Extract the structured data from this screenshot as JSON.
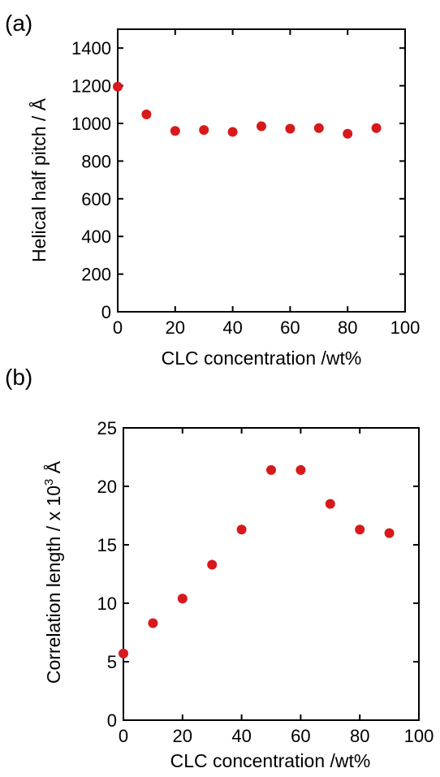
{
  "chart_data": [
    {
      "panel_label": "(a)",
      "type": "scatter",
      "xlabel": "CLC concentration /wt%",
      "ylabel": "Helical half pitch / Å",
      "xlim": [
        0,
        100
      ],
      "ylim": [
        0,
        1500
      ],
      "x_ticks": [
        0,
        20,
        40,
        60,
        80,
        100
      ],
      "y_ticks": [
        0,
        200,
        400,
        600,
        800,
        1000,
        1200,
        1400
      ],
      "marker_color": "#d7191c",
      "series": [
        {
          "x": [
            0,
            10,
            20,
            30,
            40,
            50,
            60,
            70,
            80,
            90
          ],
          "y": [
            1195,
            1048,
            960,
            965,
            955,
            985,
            972,
            975,
            945,
            975
          ]
        }
      ]
    },
    {
      "panel_label": "(b)",
      "type": "scatter",
      "xlabel": "CLC concentration /wt%",
      "ylabel": "Correlation length / x 10",
      "ylabel_sup": "3",
      "ylabel_unit": "Å",
      "xlim": [
        0,
        100
      ],
      "ylim": [
        0,
        25
      ],
      "x_ticks": [
        0,
        20,
        40,
        60,
        80,
        100
      ],
      "y_ticks": [
        0,
        5,
        10,
        15,
        20,
        25
      ],
      "marker_color": "#d7191c",
      "series": [
        {
          "x": [
            0,
            10,
            20,
            30,
            40,
            50,
            60,
            70,
            80,
            90
          ],
          "y": [
            5.7,
            8.3,
            10.4,
            13.3,
            16.3,
            21.4,
            21.4,
            18.5,
            16.3,
            16.0
          ]
        }
      ]
    }
  ]
}
